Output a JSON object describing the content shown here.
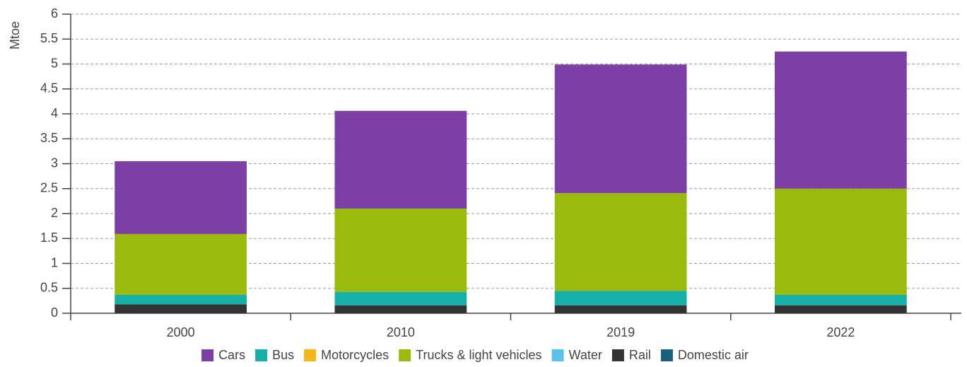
{
  "chart_data": {
    "type": "stacked_bar",
    "y_label": "Mtoe",
    "categories": [
      "2000",
      "2010",
      "2019",
      "2022"
    ],
    "series": [
      {
        "name": "Cars",
        "color": "#7b3fa5",
        "values": [
          1.46,
          1.96,
          2.58,
          2.75
        ]
      },
      {
        "name": "Bus",
        "color": "#17b0a8",
        "values": [
          0.19,
          0.27,
          0.29,
          0.21
        ]
      },
      {
        "name": "Motorcycles",
        "color": "#f7b51c",
        "values": [
          0,
          0,
          0,
          0
        ]
      },
      {
        "name": "Trucks & light vehicles",
        "color": "#9aba0e",
        "values": [
          1.22,
          1.67,
          1.96,
          2.13
        ]
      },
      {
        "name": "Water",
        "color": "#5bc0eb",
        "values": [
          0,
          0,
          0,
          0
        ]
      },
      {
        "name": "Rail",
        "color": "#333333",
        "values": [
          0.18,
          0.16,
          0.16,
          0.16
        ]
      },
      {
        "name": "Domestic air",
        "color": "#1a5f82",
        "values": [
          0,
          0,
          0,
          0
        ]
      }
    ],
    "ylim": [
      0,
      6
    ],
    "yticks": [
      0,
      0.5,
      1,
      1.5,
      2,
      2.5,
      3,
      3.5,
      4,
      4.5,
      5,
      5.5,
      6
    ],
    "grid": true,
    "legend": "bottom"
  }
}
